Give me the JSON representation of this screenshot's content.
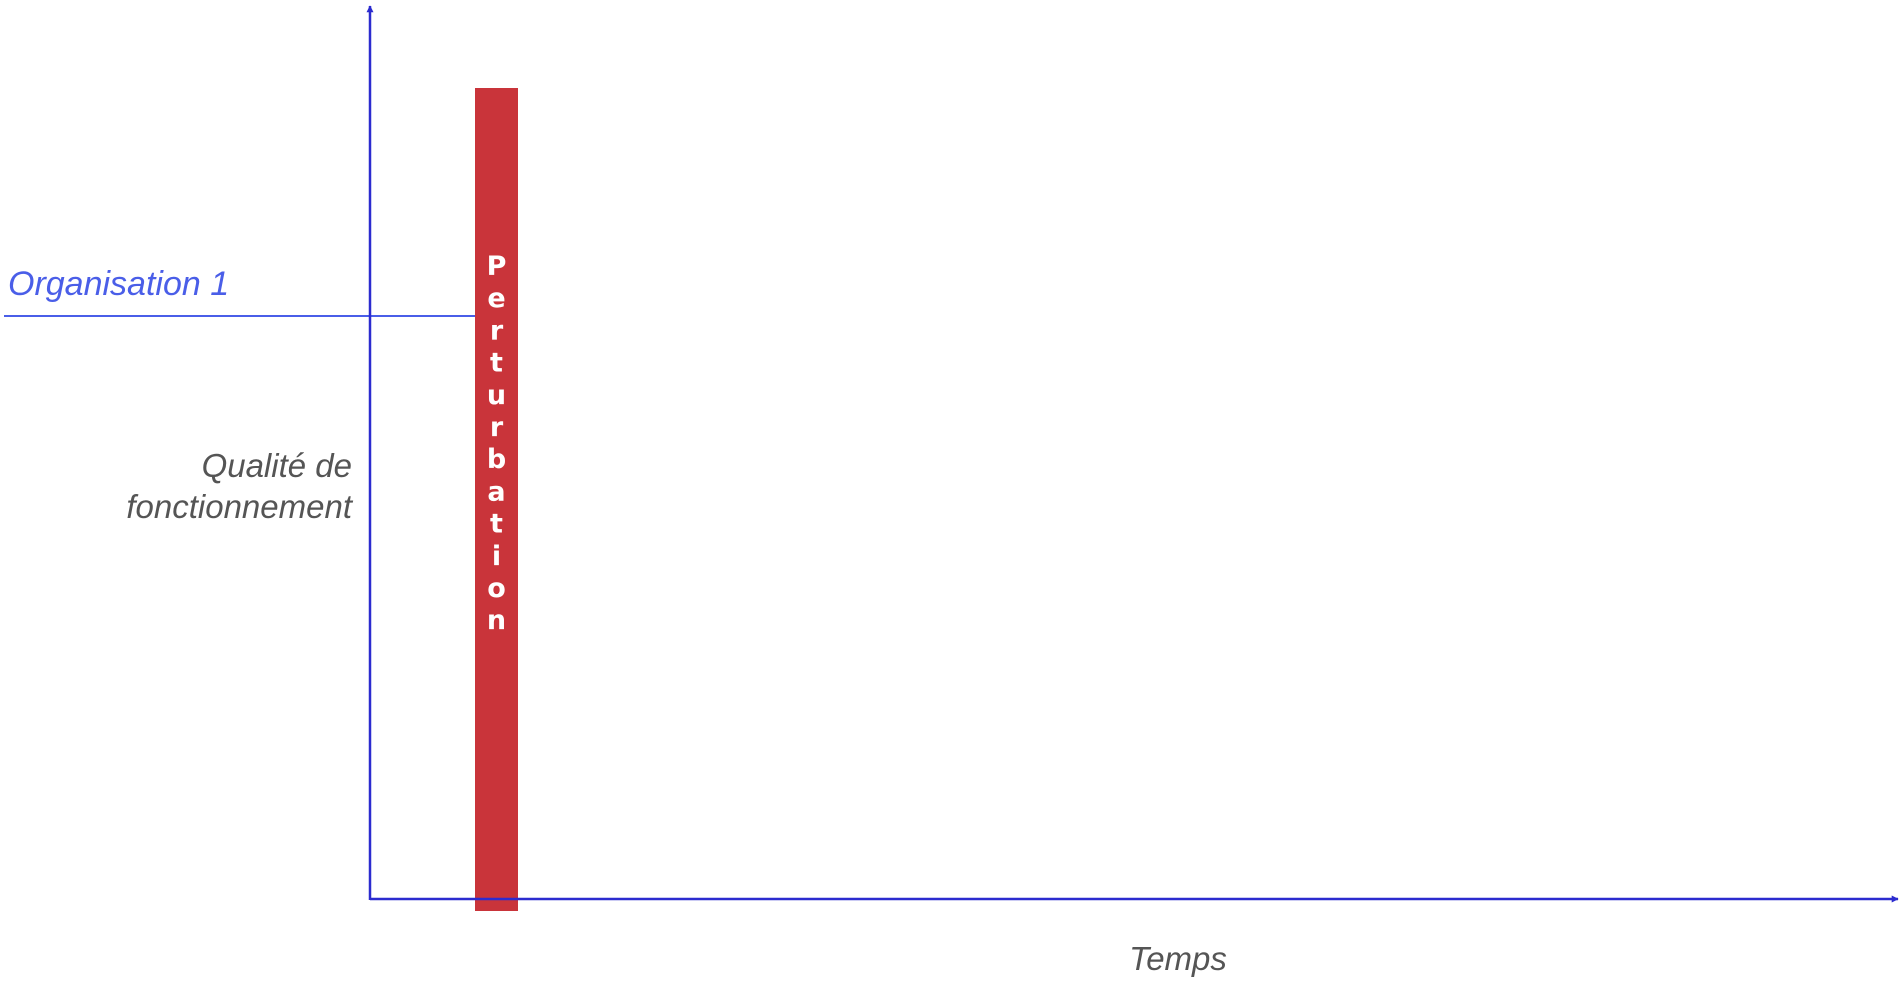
{
  "diagram": {
    "series_label": "Organisation 1",
    "y_axis_label": [
      "Qualité de",
      "fonctionnement"
    ],
    "x_axis_label": "Temps",
    "disturbance_label": "Perturbation",
    "colors": {
      "axis": "#2b2bcf",
      "series": "#4a5ee8",
      "disturbance": "#c9343a",
      "disturbance_text": "#ffffff",
      "axis_label_text": "#555555"
    }
  }
}
